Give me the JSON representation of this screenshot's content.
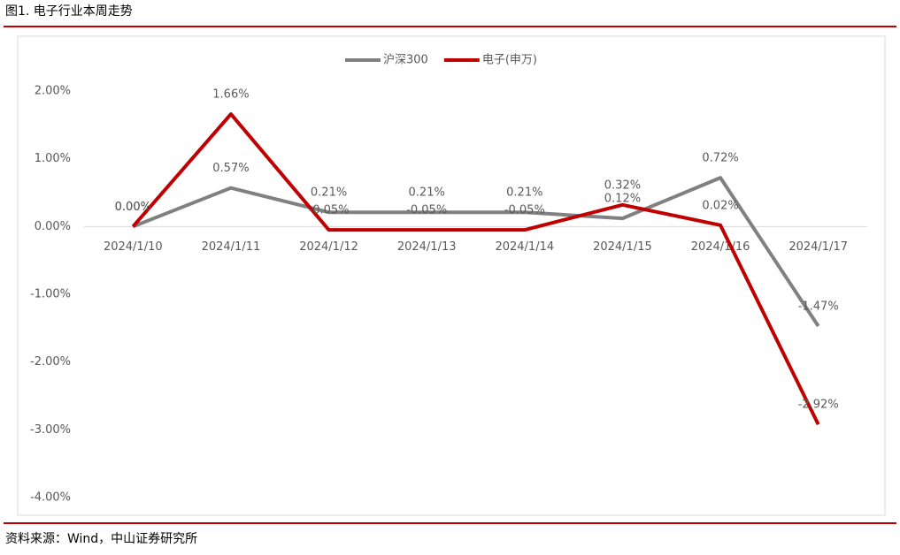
{
  "title": "图1. 电子行业本周走势",
  "source": "资料来源：Wind，中山证券研究所",
  "chart_data": {
    "type": "line",
    "categories": [
      "2024/1/10",
      "2024/1/11",
      "2024/1/12",
      "2024/1/13",
      "2024/1/14",
      "2024/1/15",
      "2024/1/16",
      "2024/1/17"
    ],
    "series": [
      {
        "name": "沪深300",
        "color": "#808080",
        "values": [
          0,
          0.57,
          0.21,
          0.21,
          0.21,
          0.12,
          0.72,
          -1.47
        ],
        "value_labels": [
          "0.00%",
          "0.57%",
          "0.21%",
          "0.21%",
          "0.21%",
          "0.12%",
          "0.72%",
          "-1.47%"
        ]
      },
      {
        "name": "电子(申万)",
        "color": "#c00000",
        "values": [
          0,
          1.66,
          -0.05,
          -0.05,
          -0.05,
          0.32,
          0.02,
          -2.92
        ],
        "value_labels": [
          "0.00%",
          "1.66%",
          "-0.05%",
          "-0.05%",
          "-0.05%",
          "0.32%",
          "0.02%",
          "-2.92%"
        ]
      }
    ],
    "ylim": [
      -4,
      2
    ],
    "yticks": [
      {
        "value": -4,
        "label": "-4.00%"
      },
      {
        "value": -3,
        "label": "-3.00%"
      },
      {
        "value": -2,
        "label": "-2.00%"
      },
      {
        "value": -1,
        "label": "-1.00%"
      },
      {
        "value": 0,
        "label": "0.00%"
      },
      {
        "value": 1,
        "label": "1.00%"
      },
      {
        "value": 2,
        "label": "2.00%"
      }
    ],
    "legend": "top"
  }
}
